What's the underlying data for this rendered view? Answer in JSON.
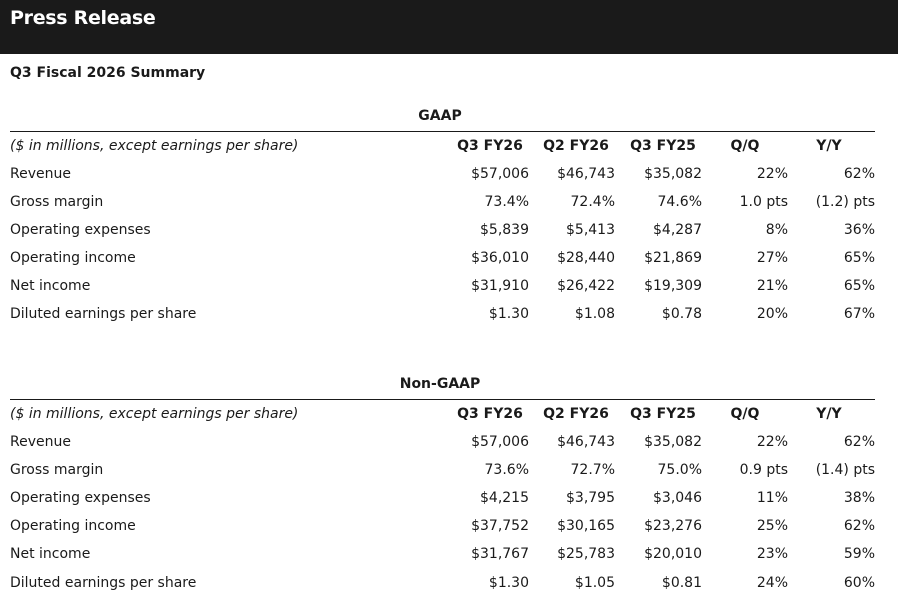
{
  "header": {
    "title": "Press Release"
  },
  "summary_title": "Q3 Fiscal 2026 Summary",
  "sections": [
    {
      "title": "GAAP",
      "columns": {
        "label": "($ in millions, except earnings per share)",
        "c1": "Q3 FY26",
        "c2": "Q2 FY26",
        "c3": "Q3 FY25",
        "c4": "Q/Q",
        "c5": "Y/Y"
      },
      "rows": [
        {
          "label": "Revenue",
          "c1": "$57,006",
          "c2": "$46,743",
          "c3": "$35,082",
          "c4": "22%",
          "c5": "62%"
        },
        {
          "label": "Gross margin",
          "c1": "73.4%",
          "c2": "72.4%",
          "c3": "74.6%",
          "c4": "1.0 pts",
          "c5": "(1.2) pts"
        },
        {
          "label": "Operating expenses",
          "c1": "$5,839",
          "c2": "$5,413",
          "c3": "$4,287",
          "c4": "8%",
          "c5": "36%"
        },
        {
          "label": "Operating income",
          "c1": "$36,010",
          "c2": "$28,440",
          "c3": "$21,869",
          "c4": "27%",
          "c5": "65%"
        },
        {
          "label": "Net income",
          "c1": "$31,910",
          "c2": "$26,422",
          "c3": "$19,309",
          "c4": "21%",
          "c5": "65%"
        },
        {
          "label": "Diluted earnings per share",
          "c1": "$1.30",
          "c2": "$1.08",
          "c3": "$0.78",
          "c4": "20%",
          "c5": "67%"
        }
      ]
    },
    {
      "title": "Non-GAAP",
      "columns": {
        "label": "($ in millions, except earnings per share)",
        "c1": "Q3 FY26",
        "c2": "Q2 FY26",
        "c3": "Q3 FY25",
        "c4": "Q/Q",
        "c5": "Y/Y"
      },
      "rows": [
        {
          "label": "Revenue",
          "c1": "$57,006",
          "c2": "$46,743",
          "c3": "$35,082",
          "c4": "22%",
          "c5": "62%"
        },
        {
          "label": "Gross margin",
          "c1": "73.6%",
          "c2": "72.7%",
          "c3": "75.0%",
          "c4": "0.9 pts",
          "c5": "(1.4) pts"
        },
        {
          "label": "Operating expenses",
          "c1": "$4,215",
          "c2": "$3,795",
          "c3": "$3,046",
          "c4": "11%",
          "c5": "38%"
        },
        {
          "label": "Operating income",
          "c1": "$37,752",
          "c2": "$30,165",
          "c3": "$23,276",
          "c4": "25%",
          "c5": "62%"
        },
        {
          "label": "Net income",
          "c1": "$31,767",
          "c2": "$25,783",
          "c3": "$20,010",
          "c4": "23%",
          "c5": "59%"
        },
        {
          "label": "Diluted earnings per share",
          "c1": "$1.30",
          "c2": "$1.05",
          "c3": "$0.81",
          "c4": "24%",
          "c5": "60%"
        }
      ]
    }
  ]
}
